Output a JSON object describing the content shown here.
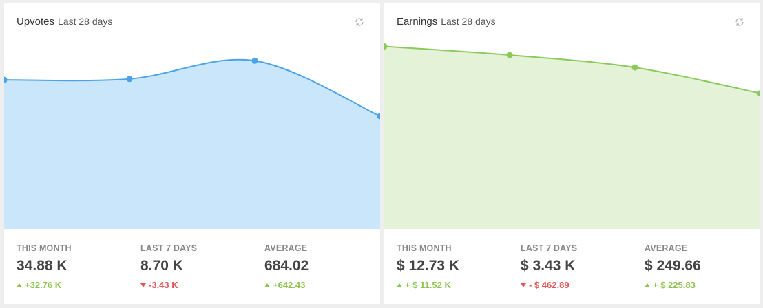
{
  "cards": [
    {
      "title": "Upvotes",
      "subtitle": "Last 28 days",
      "colors": {
        "line": "#4aa3e8",
        "fill": "#c9e6fa"
      },
      "stats": [
        {
          "label": "THIS MONTH",
          "value": "34.88 K",
          "change": "+32.76 K",
          "direction": "up"
        },
        {
          "label": "LAST 7 DAYS",
          "value": "8.70 K",
          "change": "-3.43 K",
          "direction": "down"
        },
        {
          "label": "AVERAGE",
          "value": "684.02",
          "change": "+642.43",
          "direction": "up"
        }
      ]
    },
    {
      "title": "Earnings",
      "subtitle": "Last 28 days",
      "colors": {
        "line": "#8cc95b",
        "fill": "#e4f2d7"
      },
      "stats": [
        {
          "label": "THIS MONTH",
          "value": "$ 12.73 K",
          "change": "+ $ 11.52 K",
          "direction": "up"
        },
        {
          "label": "LAST 7 DAYS",
          "value": "$ 3.43 K",
          "change": "- $ 462.89",
          "direction": "down"
        },
        {
          "label": "AVERAGE",
          "value": "$ 249.66",
          "change": "+ $ 225.83",
          "direction": "up"
        }
      ]
    }
  ],
  "chart_data": [
    {
      "type": "area",
      "x": [
        0,
        1,
        2,
        3
      ],
      "values": [
        0.78,
        0.785,
        0.88,
        0.59
      ],
      "ylim": [
        0,
        1
      ]
    },
    {
      "type": "area",
      "x": [
        0,
        1,
        2,
        3
      ],
      "values": [
        0.955,
        0.91,
        0.845,
        0.71
      ],
      "ylim": [
        0,
        1
      ]
    }
  ]
}
